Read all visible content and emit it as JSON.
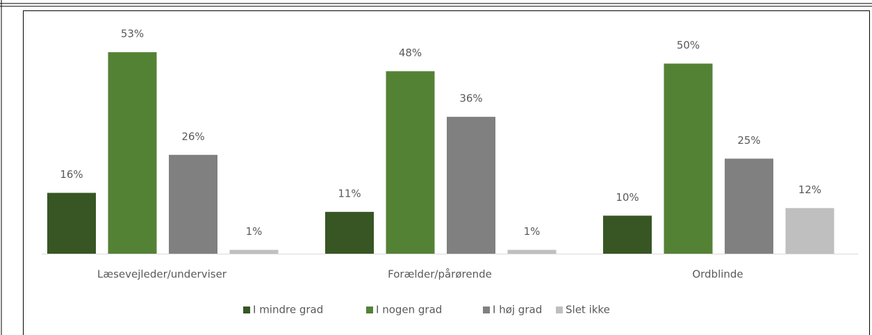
{
  "chart_data": {
    "type": "bar",
    "categories": [
      "Læsevejleder/underviser",
      "Forælder/pårørende",
      "Ordblinde"
    ],
    "series": [
      {
        "name": "I mindre grad",
        "color": "#375623",
        "values": [
          16,
          11,
          10
        ],
        "value_labels": [
          "16%",
          "11%",
          "10%"
        ]
      },
      {
        "name": "I nogen grad",
        "color": "#548235",
        "values": [
          53,
          48,
          50
        ],
        "value_labels": [
          "53%",
          "48%",
          "50%"
        ]
      },
      {
        "name": "I høj grad",
        "color": "#808080",
        "values": [
          26,
          36,
          25
        ],
        "value_labels": [
          "26%",
          "36%",
          "25%"
        ]
      },
      {
        "name": "Slet ikke",
        "color": "#bfbfbf",
        "values": [
          1,
          1,
          12
        ],
        "value_labels": [
          "1%",
          "1%",
          "12%"
        ]
      }
    ],
    "legend": "bottom"
  }
}
